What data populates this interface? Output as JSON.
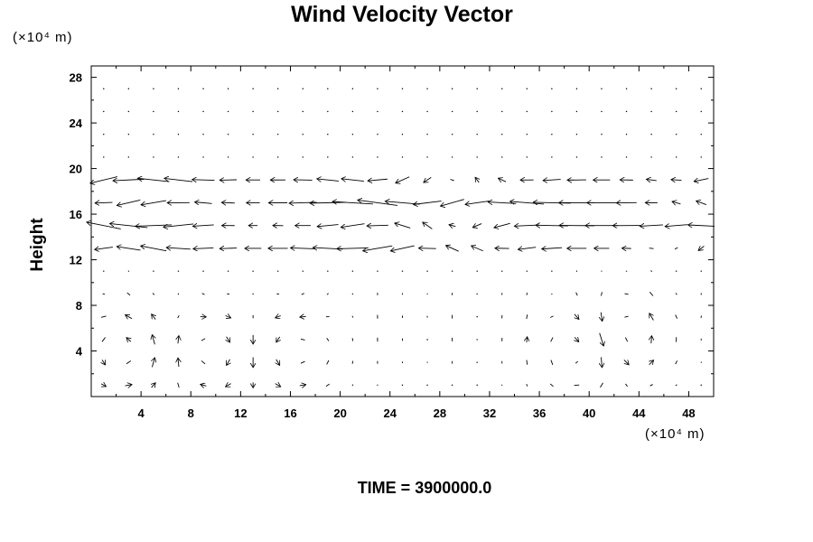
{
  "chart_data": {
    "type": "quiver",
    "title": "Wind Velocity Vector",
    "ylabel": "Height",
    "x_units": "(×10⁴ m)",
    "y_units": "(×10⁴ m)",
    "xlim": [
      0,
      50
    ],
    "ylim": [
      0,
      29
    ],
    "x_ticks": [
      "4",
      "8",
      "12",
      "16",
      "20",
      "24",
      "28",
      "32",
      "36",
      "40",
      "44",
      "48"
    ],
    "y_ticks": [
      "4",
      "8",
      "12",
      "16",
      "20",
      "24",
      "28"
    ],
    "time_label": "TIME = 3900000.0",
    "grid_spacing": [
      2,
      2
    ],
    "jet_band": [
      12,
      20
    ],
    "lower_vortices": [
      {
        "x": 3,
        "y": 4
      },
      {
        "x": 10,
        "y": 4
      },
      {
        "x": 16,
        "y": 4
      },
      {
        "x": 40,
        "y": 4
      },
      {
        "x": 43,
        "y": 5
      }
    ]
  }
}
